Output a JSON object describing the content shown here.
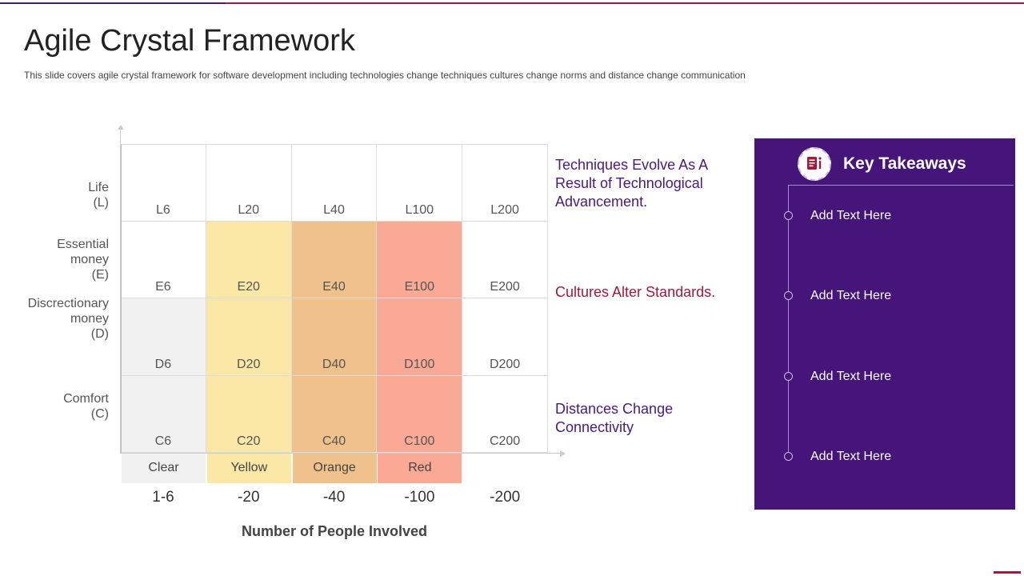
{
  "header": {
    "title": "Agile Crystal Framework",
    "subtitle": "This slide covers agile crystal framework for software development including technologies change techniques cultures change norms and distance change communication"
  },
  "diagram": {
    "rows": [
      {
        "label_lines": [
          "Life",
          "(L)"
        ],
        "cells": [
          "L6",
          "L20",
          "L40",
          "L100",
          "L200"
        ]
      },
      {
        "label_lines": [
          "Essential",
          "money",
          "(E)"
        ],
        "cells": [
          "E6",
          "E20",
          "E40",
          "E100",
          "E200"
        ]
      },
      {
        "label_lines": [
          "Discrectionary",
          "money",
          "(D)"
        ],
        "cells": [
          "D6",
          "D20",
          "D40",
          "D100",
          "D200"
        ]
      },
      {
        "label_lines": [
          "Comfort",
          "(C)"
        ],
        "cells": [
          "C6",
          "C20",
          "C40",
          "C100",
          "C200"
        ]
      }
    ],
    "column_colors": [
      "Clear",
      "Yellow",
      "Orange",
      "Red"
    ],
    "column_ranges": [
      "1-6",
      "-20",
      "-40",
      "-100",
      "-200"
    ],
    "x_axis_title": "Number of People Involved",
    "colors": {
      "clear": "#f1f1f1",
      "yellow": "#fce8a6",
      "orange": "#efc18b",
      "red": "#f9a994",
      "white": "#ffffff"
    },
    "shading": [
      [
        "white",
        "white",
        "white",
        "white",
        "white"
      ],
      [
        "white",
        "yellow",
        "orange",
        "red",
        "white"
      ],
      [
        "clear",
        "yellow",
        "orange",
        "red",
        "white"
      ],
      [
        "clear",
        "yellow",
        "orange",
        "red",
        "white"
      ]
    ]
  },
  "notes": [
    {
      "text": "Techniques Evolve As A Result of Technological Advancement.",
      "color": "#4a1a7a"
    },
    {
      "text": "Cultures Alter Standards.",
      "color": "#a01a3a"
    },
    {
      "text": "Distances Change Connectivity",
      "color": "#4a1a7a"
    }
  ],
  "takeaways": {
    "icon": "document-info-icon",
    "title": "Key Takeaways",
    "items": [
      "Add Text Here",
      "Add Text Here",
      "Add Text Here",
      "Add Text Here"
    ],
    "background": "#45157a"
  }
}
